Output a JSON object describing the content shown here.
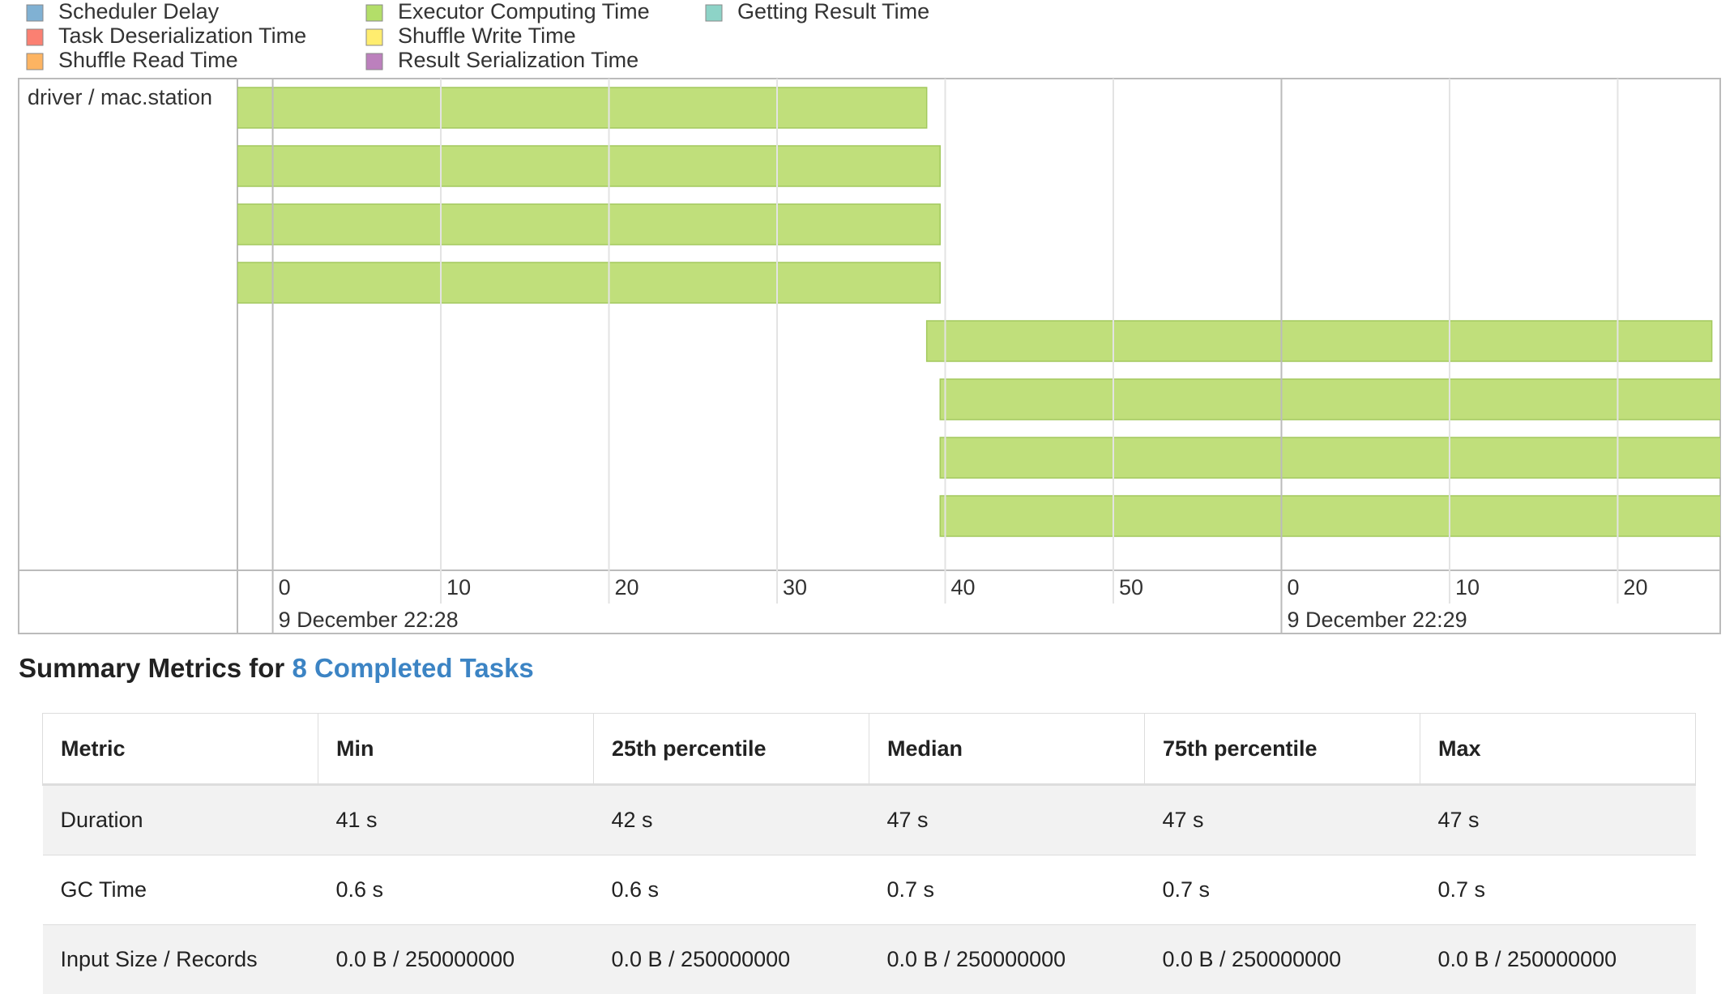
{
  "legend": [
    {
      "label": "Scheduler Delay",
      "color": "#80b1d3"
    },
    {
      "label": "Task Deserialization Time",
      "color": "#fb8072"
    },
    {
      "label": "Shuffle Read Time",
      "color": "#fdb462"
    },
    {
      "label": "Executor Computing Time",
      "color": "#b3de69"
    },
    {
      "label": "Shuffle Write Time",
      "color": "#ffed6f"
    },
    {
      "label": "Result Serialization Time",
      "color": "#bc80bd"
    },
    {
      "label": "Getting Result Time",
      "color": "#8dd3c7"
    }
  ],
  "timeline": {
    "row_label": "driver / mac.station",
    "xlim": [
      -2.1,
      86.1
    ],
    "xticks": [
      0,
      10,
      20,
      30,
      40,
      50,
      {
        "value": 60,
        "label": "0"
      },
      {
        "value": 70,
        "label": "10"
      },
      {
        "value": 80,
        "label": "20"
      }
    ],
    "date_labels": [
      {
        "value": 0,
        "label": "9 December 22:28"
      },
      {
        "value": 60,
        "label": "9 December 22:29"
      }
    ],
    "color": "#c0df7b",
    "tasks": [
      {
        "start": -2.1,
        "end": 38.9
      },
      {
        "start": -2.1,
        "end": 39.7
      },
      {
        "start": -2.1,
        "end": 39.7
      },
      {
        "start": -2.1,
        "end": 39.7
      },
      {
        "start": 38.9,
        "end": 85.6
      },
      {
        "start": 39.7,
        "end": 86.7
      },
      {
        "start": 39.7,
        "end": 86.7
      },
      {
        "start": 39.7,
        "end": 86.7
      }
    ]
  },
  "summary": {
    "title": "Summary Metrics for",
    "link": "8 Completed Tasks"
  },
  "table": {
    "header": [
      "Metric",
      "Min",
      "25th percentile",
      "Median",
      "75th percentile",
      "Max"
    ],
    "rows": [
      [
        "Duration",
        "41 s",
        "42 s",
        "47 s",
        "47 s",
        "47 s"
      ],
      [
        "GC Time",
        "0.6 s",
        "0.6 s",
        "0.7 s",
        "0.7 s",
        "0.7 s"
      ],
      [
        "Input Size / Records",
        "0.0 B / 250000000",
        "0.0 B / 250000000",
        "0.0 B / 250000000",
        "0.0 B / 250000000",
        "0.0 B / 250000000"
      ]
    ]
  }
}
